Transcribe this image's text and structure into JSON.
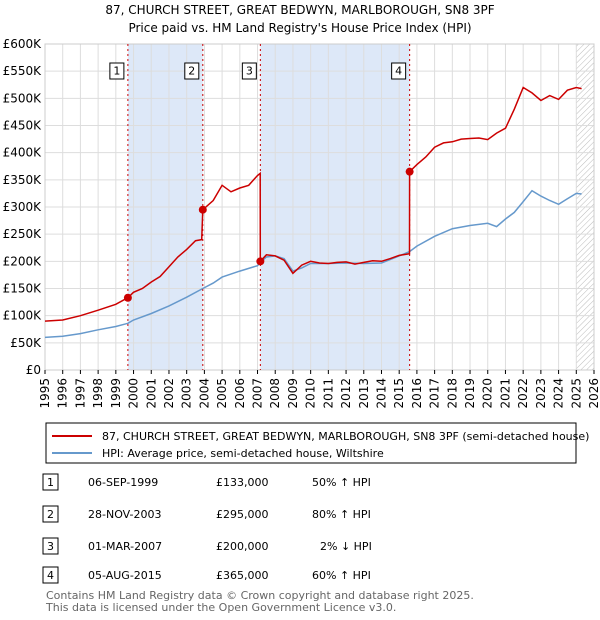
{
  "chart_data": {
    "type": "line",
    "title": "87, CHURCH STREET, GREAT BEDWYN, MARLBOROUGH, SN8 3PF",
    "subtitle": "Price paid vs. HM Land Registry's House Price Index (HPI)",
    "xlabel": "",
    "ylabel": "",
    "xlim": [
      1995,
      2026
    ],
    "ylim": [
      0,
      600000
    ],
    "y_ticks": [
      {
        "value": 0,
        "label": "£0"
      },
      {
        "value": 50000,
        "label": "£50K"
      },
      {
        "value": 100000,
        "label": "£100K"
      },
      {
        "value": 150000,
        "label": "£150K"
      },
      {
        "value": 200000,
        "label": "£200K"
      },
      {
        "value": 250000,
        "label": "£250K"
      },
      {
        "value": 300000,
        "label": "£300K"
      },
      {
        "value": 350000,
        "label": "£350K"
      },
      {
        "value": 400000,
        "label": "£400K"
      },
      {
        "value": 450000,
        "label": "£450K"
      },
      {
        "value": 500000,
        "label": "£500K"
      },
      {
        "value": 550000,
        "label": "£550K"
      },
      {
        "value": 600000,
        "label": "£600K"
      }
    ],
    "x_ticks": [
      "1995",
      "1996",
      "1997",
      "1998",
      "1999",
      "2000",
      "2001",
      "2002",
      "2003",
      "2004",
      "2005",
      "2006",
      "2007",
      "2008",
      "2009",
      "2010",
      "2011",
      "2012",
      "2013",
      "2014",
      "2015",
      "2016",
      "2017",
      "2018",
      "2019",
      "2020",
      "2021",
      "2022",
      "2023",
      "2024",
      "2025",
      "2026"
    ],
    "shaded_spans": [
      [
        1999.68,
        2003.91
      ],
      [
        2007.16,
        2015.59
      ]
    ],
    "hatch_start": 2025.0,
    "colors": {
      "property": "#cc0000",
      "hpi": "#6699cc",
      "shade": "#dde8f8",
      "vline": "#cc0000",
      "grid": "#dddddd"
    },
    "series": [
      {
        "name": "87, CHURCH STREET, GREAT BEDWYN, MARLBOROUGH, SN8 3PF (semi-detached house)",
        "color": "#cc0000",
        "x": [
          1995.0,
          1996.0,
          1997.0,
          1998.0,
          1999.0,
          1999.68,
          2000.0,
          2000.5,
          2001.0,
          2001.5,
          2002.0,
          2002.5,
          2003.0,
          2003.5,
          2003.85,
          2003.91,
          2004.5,
          2005.0,
          2005.5,
          2006.0,
          2006.5,
          2007.0,
          2007.15,
          2007.16,
          2007.5,
          2008.0,
          2008.5,
          2009.0,
          2009.5,
          2010.0,
          2010.5,
          2011.0,
          2011.5,
          2012.0,
          2012.5,
          2013.0,
          2013.5,
          2014.0,
          2014.5,
          2015.0,
          2015.58,
          2015.59,
          2016.0,
          2016.5,
          2017.0,
          2017.5,
          2018.0,
          2018.5,
          2019.0,
          2019.5,
          2020.0,
          2020.5,
          2021.0,
          2021.5,
          2022.0,
          2022.5,
          2023.0,
          2023.5,
          2024.0,
          2024.5,
          2025.0,
          2025.3
        ],
        "y": [
          90000,
          92000,
          100000,
          110000,
          121000,
          133000,
          143000,
          150000,
          162000,
          172000,
          190000,
          208000,
          222000,
          238000,
          240000,
          295000,
          312000,
          340000,
          328000,
          335000,
          340000,
          358000,
          362000,
          200000,
          212000,
          210000,
          202000,
          178000,
          193000,
          200000,
          197000,
          196000,
          198000,
          199000,
          195000,
          198000,
          201000,
          200000,
          205000,
          211000,
          214000,
          365000,
          378000,
          392000,
          410000,
          418000,
          420000,
          425000,
          426000,
          427000,
          424000,
          436000,
          445000,
          480000,
          520000,
          510000,
          496000,
          505000,
          498000,
          515000,
          520000,
          518000
        ]
      },
      {
        "name": "HPI: Average price, semi-detached house, Wiltshire",
        "color": "#6699cc",
        "x": [
          1995.0,
          1996.0,
          1997.0,
          1998.0,
          1999.0,
          1999.68,
          2000.0,
          2001.0,
          2002.0,
          2003.0,
          2003.91,
          2004.5,
          2005.0,
          2006.0,
          2007.0,
          2007.16,
          2007.5,
          2008.0,
          2008.5,
          2009.0,
          2009.5,
          2010.0,
          2011.0,
          2012.0,
          2013.0,
          2014.0,
          2015.0,
          2015.59,
          2016.0,
          2017.0,
          2018.0,
          2019.0,
          2020.0,
          2020.5,
          2021.0,
          2021.5,
          2022.0,
          2022.5,
          2023.0,
          2023.5,
          2024.0,
          2024.5,
          2025.0,
          2025.3
        ],
        "y": [
          60000,
          62000,
          67000,
          74000,
          80000,
          86000,
          92000,
          104000,
          118000,
          134000,
          150000,
          160000,
          171000,
          182000,
          192000,
          198000,
          208000,
          210000,
          205000,
          182000,
          188000,
          196000,
          196000,
          197000,
          196000,
          197000,
          210000,
          218000,
          228000,
          246000,
          260000,
          266000,
          270000,
          264000,
          278000,
          290000,
          310000,
          330000,
          320000,
          312000,
          305000,
          315000,
          325000,
          324000
        ]
      }
    ],
    "sales": [
      {
        "n": "1",
        "x": 1999.68,
        "y": 133000
      },
      {
        "n": "2",
        "x": 2003.91,
        "y": 295000
      },
      {
        "n": "3",
        "x": 2007.16,
        "y": 200000
      },
      {
        "n": "4",
        "x": 2015.59,
        "y": 365000
      }
    ]
  },
  "legend": {
    "property_label": "87, CHURCH STREET, GREAT BEDWYN, MARLBOROUGH, SN8 3PF (semi-detached house)",
    "hpi_label": "HPI: Average price, semi-detached house, Wiltshire"
  },
  "transactions": [
    {
      "n": "1",
      "date": "06-SEP-1999",
      "price": "£133,000",
      "hpi": "50% ↑ HPI"
    },
    {
      "n": "2",
      "date": "28-NOV-2003",
      "price": "£295,000",
      "hpi": "80% ↑ HPI"
    },
    {
      "n": "3",
      "date": "01-MAR-2007",
      "price": "£200,000",
      "hpi": "2% ↓ HPI"
    },
    {
      "n": "4",
      "date": "05-AUG-2015",
      "price": "£365,000",
      "hpi": "60% ↑ HPI"
    }
  ],
  "footer": {
    "line1": "Contains HM Land Registry data © Crown copyright and database right 2025.",
    "line2": "This data is licensed under the Open Government Licence v3.0."
  }
}
